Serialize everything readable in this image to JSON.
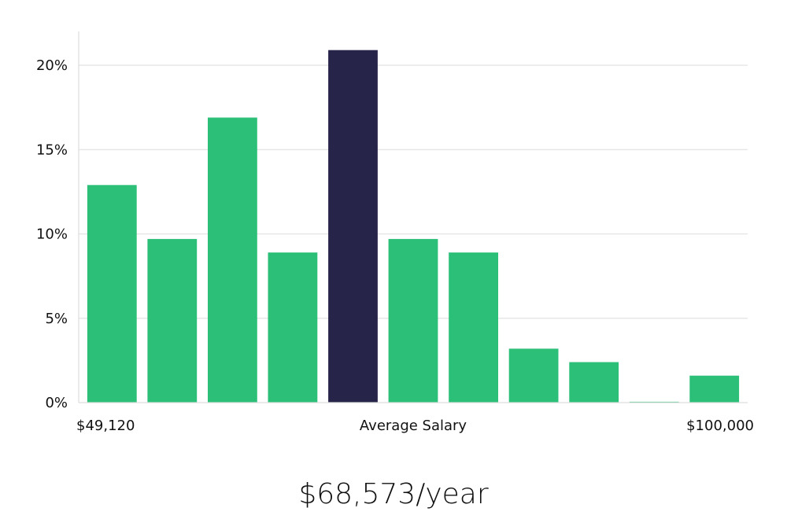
{
  "chart_data": {
    "type": "bar",
    "y_unit": "%",
    "ylim": [
      0,
      22
    ],
    "y_ticks": [
      0,
      5,
      10,
      15,
      20
    ],
    "y_tick_labels": [
      "0%",
      "5%",
      "10%",
      "15%",
      "20%"
    ],
    "grid": true,
    "values": [
      12.9,
      9.7,
      16.9,
      8.9,
      20.9,
      9.7,
      8.9,
      3.2,
      2.4,
      0.05,
      1.6
    ],
    "highlight_index": 4,
    "x_labels": {
      "left": "$49,120",
      "center": "Average Salary",
      "right": "$100,000"
    },
    "colors": {
      "bar": "#2bbf78",
      "highlight": "#27244a",
      "grid": "#e2e2e2",
      "text": "#111111"
    }
  },
  "summary": {
    "salary_text": "$68,573/year"
  }
}
